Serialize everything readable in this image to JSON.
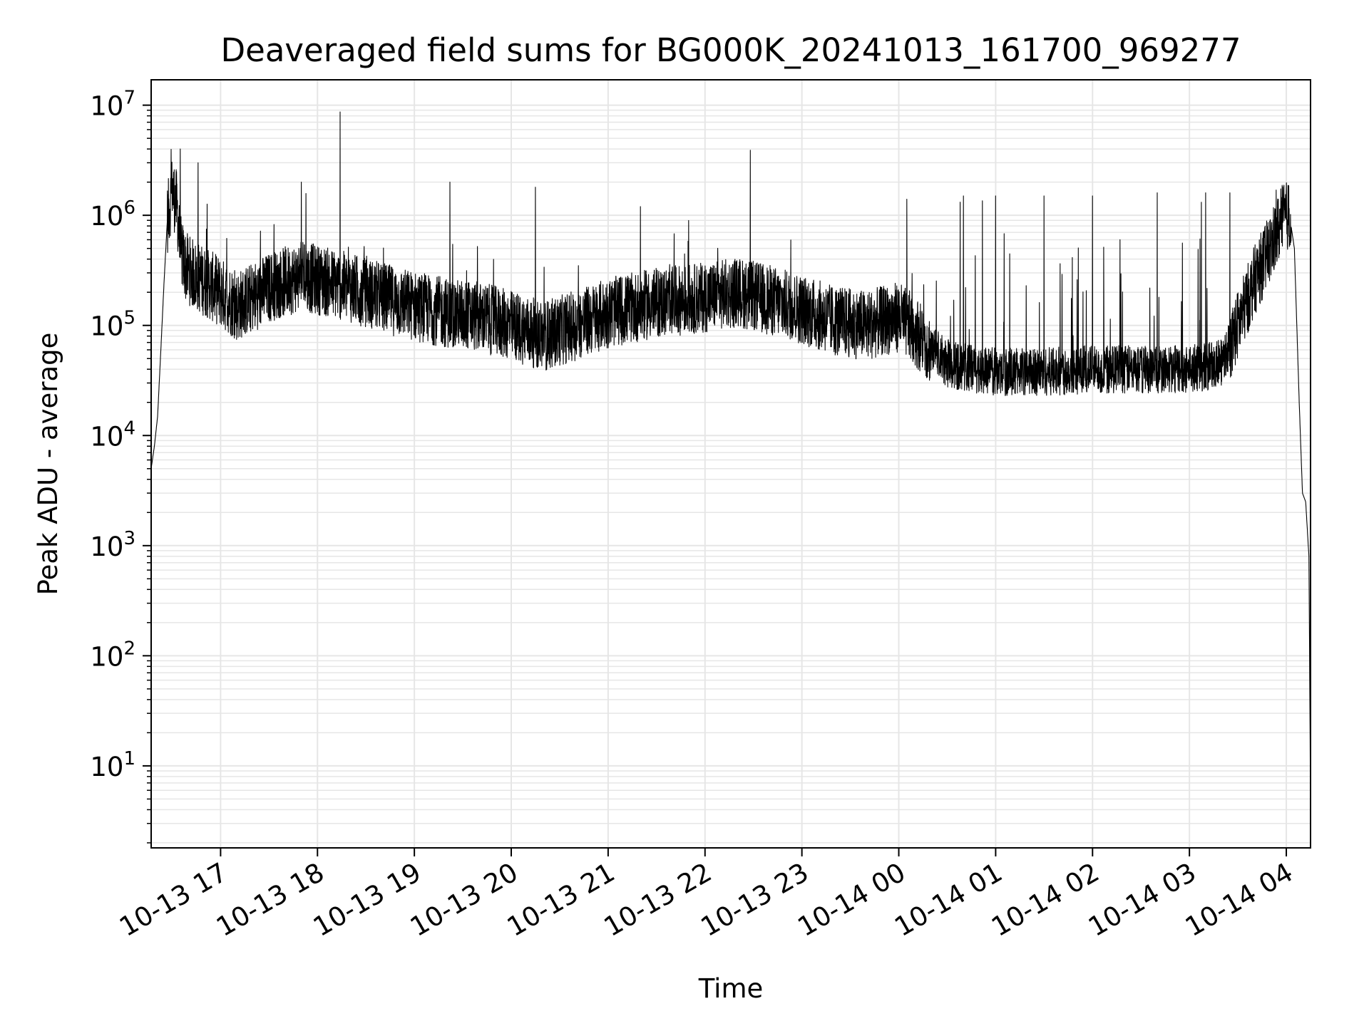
{
  "chart_data": {
    "type": "line",
    "title": "Deaveraged field sums for BG000K_20241013_161700_969277",
    "xlabel": "Time",
    "ylabel": "Peak ADU - average",
    "yscale": "log",
    "ylim": [
      1.8,
      17000000
    ],
    "xlim": [
      "10-13 16:17",
      "10-14 04:15"
    ],
    "grid": true,
    "line_color": "#000000",
    "grid_color": "#e6e6e6",
    "x_ticks": [
      "10-13 17",
      "10-13 18",
      "10-13 19",
      "10-13 20",
      "10-13 21",
      "10-13 22",
      "10-13 23",
      "10-14 00",
      "10-14 01",
      "10-14 02",
      "10-14 03",
      "10-14 04"
    ],
    "y_ticks": [
      {
        "value": 10,
        "base": "10",
        "exp": "1"
      },
      {
        "value": 100,
        "base": "10",
        "exp": "2"
      },
      {
        "value": 1000,
        "base": "10",
        "exp": "3"
      },
      {
        "value": 10000,
        "base": "10",
        "exp": "4"
      },
      {
        "value": 100000,
        "base": "10",
        "exp": "5"
      },
      {
        "value": 1000000,
        "base": "10",
        "exp": "6"
      },
      {
        "value": 10000000,
        "base": "10",
        "exp": "7"
      }
    ],
    "series": [
      {
        "points": [
          [
            "10-13 16:17",
            5000
          ],
          [
            "10-13 16:19",
            8000
          ],
          [
            "10-13 16:21",
            15000
          ],
          [
            "10-13 16:23",
            60000
          ],
          [
            "10-13 16:25",
            250000
          ],
          [
            "10-13 16:27",
            900000
          ],
          [
            "10-13 16:30",
            1700000
          ],
          [
            "10-13 16:33",
            1200000
          ],
          [
            "10-13 16:35",
            500000
          ],
          [
            "10-13 16:38",
            350000
          ],
          [
            "10-13 16:42",
            300000
          ],
          [
            "10-13 16:50",
            250000
          ],
          [
            "10-13 17:00",
            200000
          ],
          [
            "10-13 17:10",
            150000
          ],
          [
            "10-13 17:20",
            180000
          ],
          [
            "10-13 17:30",
            220000
          ],
          [
            "10-13 17:40",
            250000
          ],
          [
            "10-13 17:50",
            280000
          ],
          [
            "10-13 18:00",
            260000
          ],
          [
            "10-13 18:15",
            230000
          ],
          [
            "10-13 18:30",
            200000
          ],
          [
            "10-13 18:45",
            170000
          ],
          [
            "10-13 19:00",
            150000
          ],
          [
            "10-13 19:20",
            130000
          ],
          [
            "10-13 19:40",
            120000
          ],
          [
            "10-13 20:00",
            100000
          ],
          [
            "10-13 20:20",
            80000
          ],
          [
            "10-13 20:40",
            100000
          ],
          [
            "10-13 21:00",
            130000
          ],
          [
            "10-13 21:30",
            160000
          ],
          [
            "10-13 22:00",
            180000
          ],
          [
            "10-13 22:20",
            200000
          ],
          [
            "10-13 22:40",
            170000
          ],
          [
            "10-13 23:00",
            140000
          ],
          [
            "10-13 23:20",
            110000
          ],
          [
            "10-13 23:40",
            100000
          ],
          [
            "10-14 00:00",
            120000
          ],
          [
            "10-14 00:10",
            90000
          ],
          [
            "10-14 00:20",
            60000
          ],
          [
            "10-14 00:30",
            45000
          ],
          [
            "10-14 00:45",
            40000
          ],
          [
            "10-14 01:00",
            38000
          ],
          [
            "10-14 01:30",
            38000
          ],
          [
            "10-14 02:00",
            40000
          ],
          [
            "10-14 02:30",
            40000
          ],
          [
            "10-14 03:00",
            40000
          ],
          [
            "10-14 03:20",
            45000
          ],
          [
            "10-14 03:30",
            100000
          ],
          [
            "10-14 03:40",
            250000
          ],
          [
            "10-14 03:50",
            500000
          ],
          [
            "10-14 03:58",
            950000
          ],
          [
            "10-14 04:02",
            1000000
          ],
          [
            "10-14 04:05",
            500000
          ],
          [
            "10-14 04:08",
            20000
          ],
          [
            "10-14 04:10",
            3000
          ],
          [
            "10-14 04:12",
            2500
          ],
          [
            "10-14 04:14",
            800
          ],
          [
            "10-14 04:15",
            4
          ]
        ],
        "spikes": [
          [
            "10-13 16:30",
            1700000
          ],
          [
            "10-13 16:35",
            4000000
          ],
          [
            "10-13 16:46",
            3000000
          ],
          [
            "10-13 17:50",
            2000000
          ],
          [
            "10-13 18:14",
            8700000
          ],
          [
            "10-13 19:22",
            2000000
          ],
          [
            "10-13 20:15",
            1800000
          ],
          [
            "10-13 21:20",
            1200000
          ],
          [
            "10-13 22:28",
            3900000
          ],
          [
            "10-14 00:05",
            1400000
          ],
          [
            "10-14 00:40",
            1500000
          ],
          [
            "10-14 01:00",
            1500000
          ],
          [
            "10-14 01:30",
            1500000
          ],
          [
            "10-14 02:00",
            1500000
          ],
          [
            "10-14 02:40",
            1600000
          ],
          [
            "10-14 03:10",
            1600000
          ],
          [
            "10-14 03:25",
            1600000
          ]
        ]
      }
    ]
  }
}
